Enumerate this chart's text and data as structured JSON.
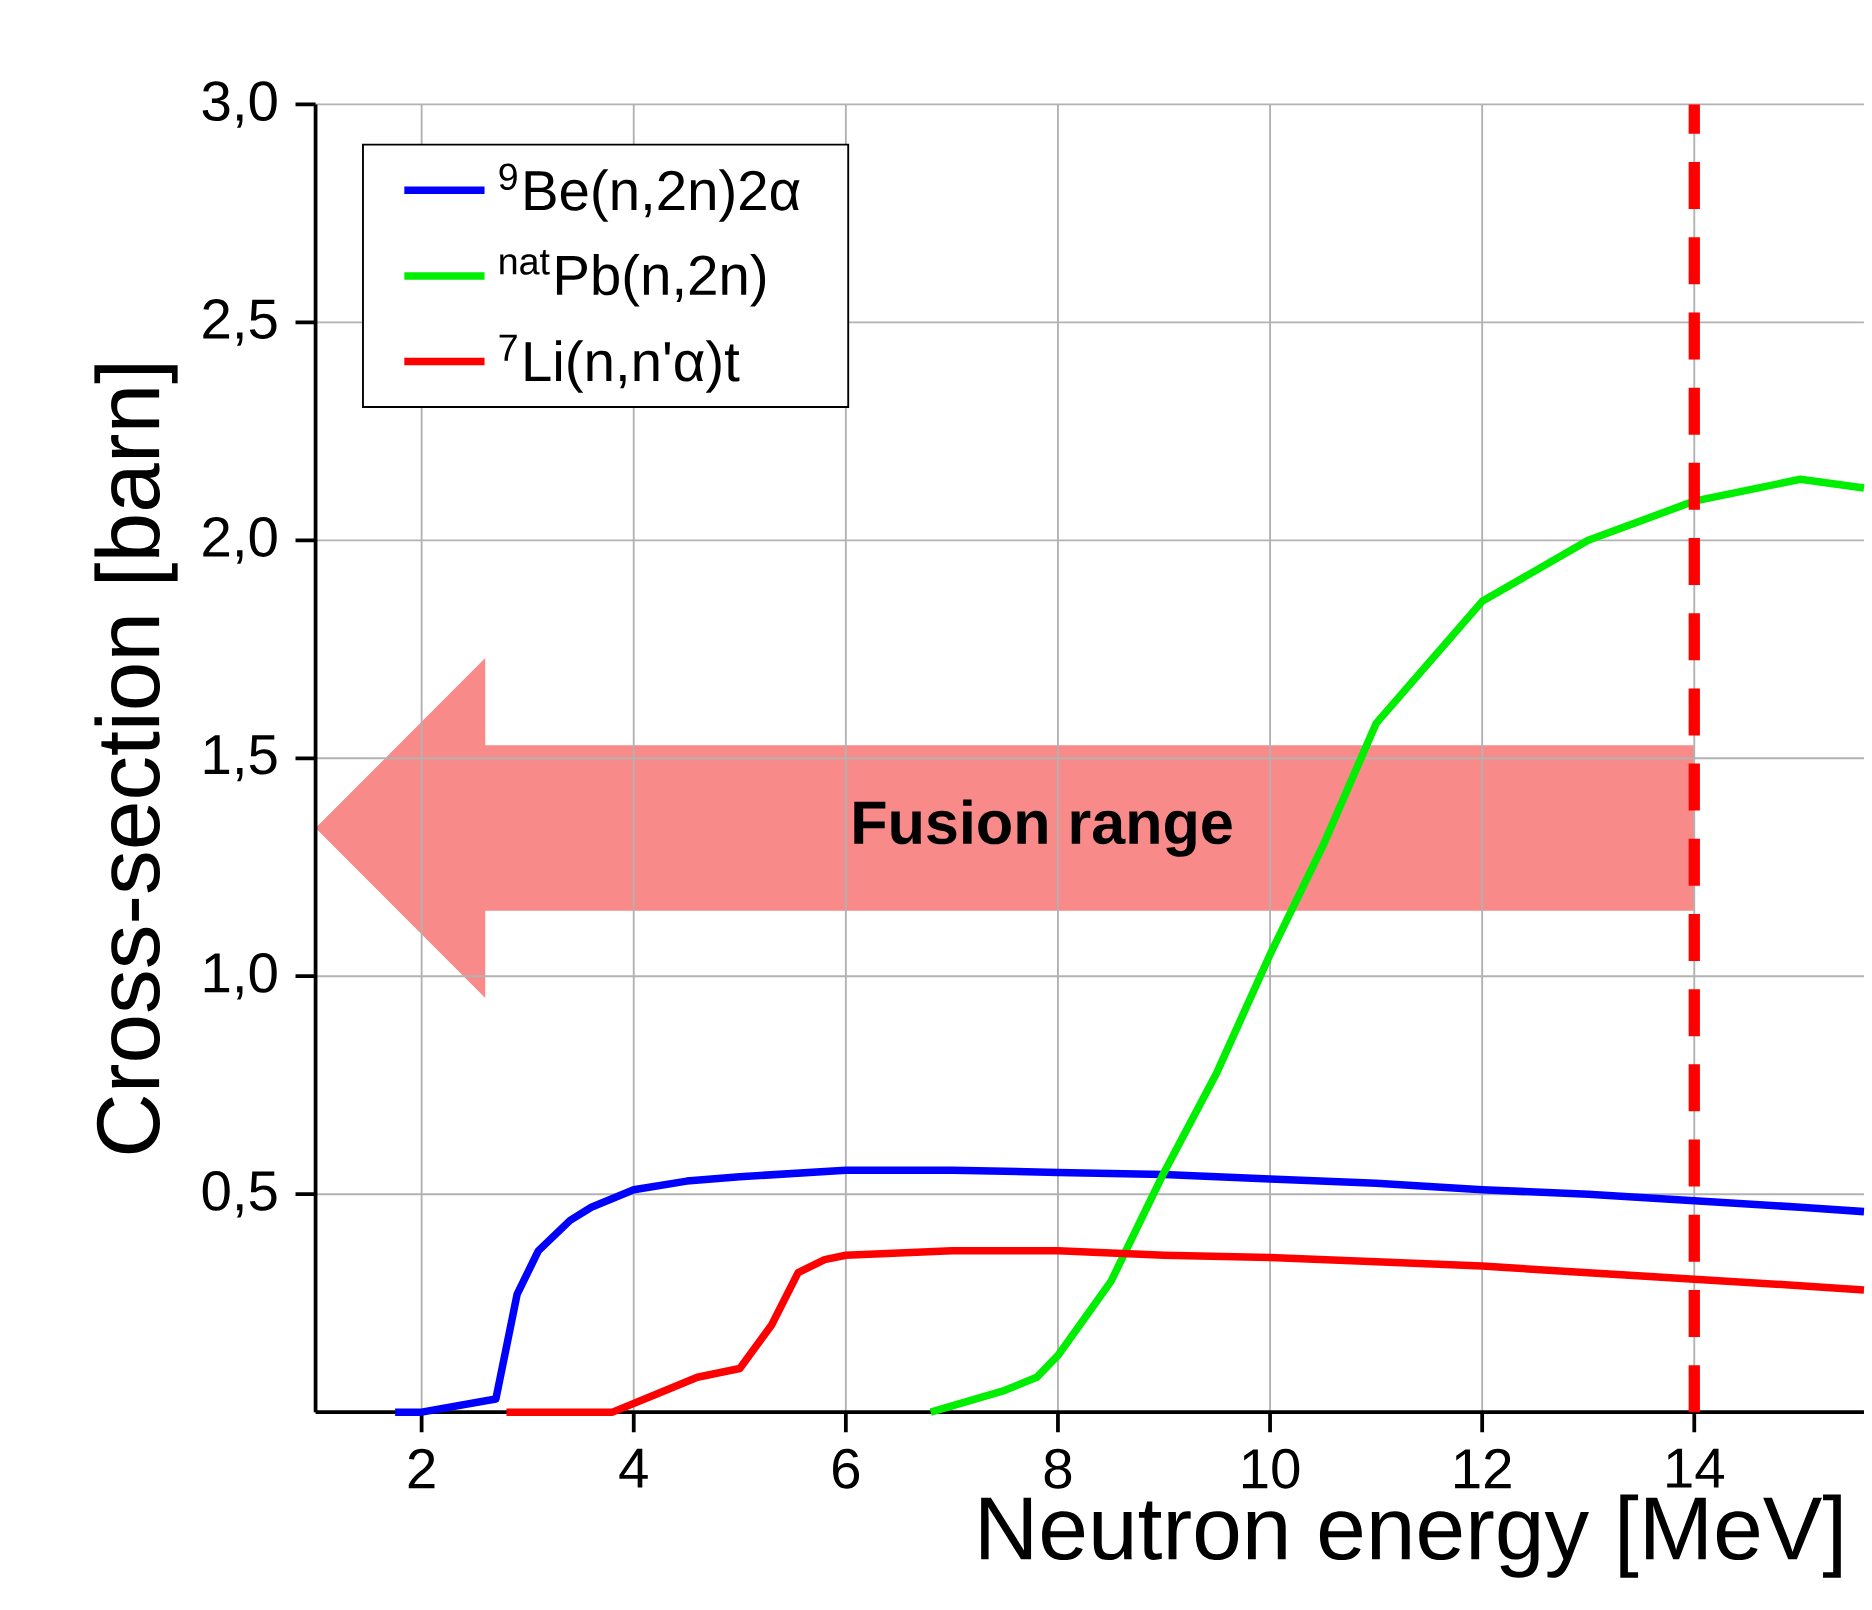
{
  "chart_data": {
    "type": "line",
    "xlabel": "Neutron energy [MeV]",
    "ylabel": "Cross-section [barn]",
    "xlim": [
      1,
      15.6
    ],
    "ylim": [
      0,
      3
    ],
    "xticks": [
      2,
      4,
      6,
      8,
      10,
      12,
      14
    ],
    "yticks": [
      {
        "value": 0.5,
        "label": "0,5"
      },
      {
        "value": 1.0,
        "label": "1,0"
      },
      {
        "value": 1.5,
        "label": "1,5"
      },
      {
        "value": 2.0,
        "label": "2,0"
      },
      {
        "value": 2.5,
        "label": "2,5"
      },
      {
        "value": 3.0,
        "label": "3,0"
      }
    ],
    "grid": true,
    "legend": "top left",
    "marker": "none",
    "line_style": "solid",
    "series": [
      {
        "name": "$^{9}$Be(n,2n)2α",
        "color": "#0000ff",
        "x": [
          1.75,
          2.0,
          2.7,
          2.9,
          3.1,
          3.4,
          3.6,
          4.0,
          4.5,
          5,
          6,
          7,
          8,
          9,
          10,
          11,
          12,
          13,
          14,
          15,
          15.6
        ],
        "values": [
          0,
          0,
          0.03,
          0.27,
          0.37,
          0.44,
          0.47,
          0.51,
          0.53,
          0.54,
          0.555,
          0.555,
          0.55,
          0.545,
          0.535,
          0.525,
          0.51,
          0.5,
          0.485,
          0.47,
          0.46
        ]
      },
      {
        "name": "$^{nat}$Pb(n,2n)",
        "color": "#00ee00",
        "x": [
          6.8,
          7.5,
          7.8,
          8,
          8.5,
          9,
          9.5,
          10,
          10.5,
          11,
          12,
          13,
          14,
          15,
          15.6
        ],
        "values": [
          0,
          0.05,
          0.08,
          0.13,
          0.3,
          0.55,
          0.78,
          1.05,
          1.3,
          1.58,
          1.86,
          2.0,
          2.09,
          2.14,
          2.12
        ]
      },
      {
        "name": "$^{7}$Li(n,n'α)t",
        "color": "#ff0000",
        "x": [
          2.8,
          3.8,
          4.2,
          4.6,
          5,
          5.3,
          5.55,
          5.8,
          6,
          7,
          8,
          9,
          10,
          11,
          12,
          13,
          14,
          15,
          15.6
        ],
        "values": [
          0,
          0,
          0.04,
          0.08,
          0.1,
          0.2,
          0.32,
          0.35,
          0.36,
          0.37,
          0.37,
          0.36,
          0.355,
          0.345,
          0.335,
          0.32,
          0.305,
          0.29,
          0.28
        ]
      }
    ],
    "ref_lines": [
      {
        "axis": "x",
        "value": 14,
        "color": "#ff0000",
        "line_style": "dashed"
      }
    ],
    "annotations": [
      "Fusion range"
    ]
  }
}
